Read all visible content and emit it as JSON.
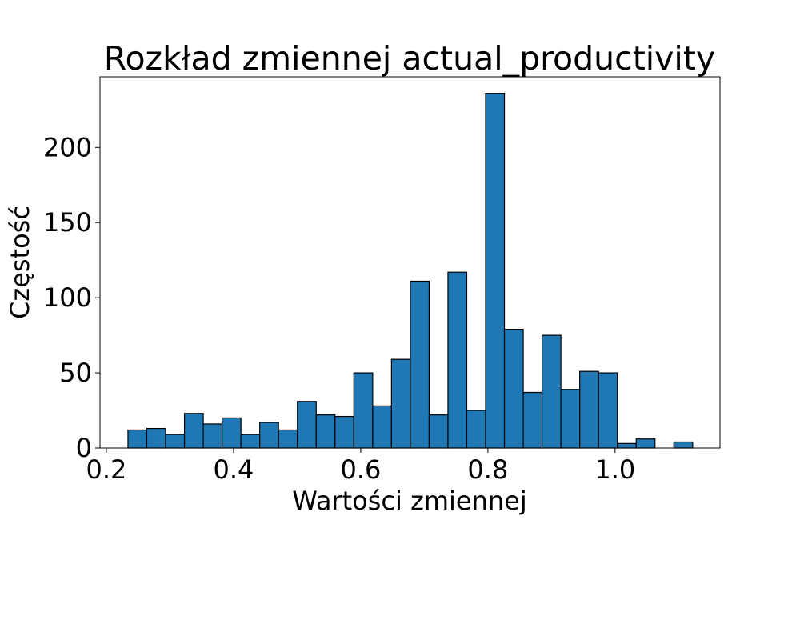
{
  "chart_data": {
    "type": "bar",
    "title": "Rozkład zmiennej actual_productivity",
    "xlabel": "Wartości zmiennej",
    "ylabel": "Częstość",
    "xlim": [
      0.19,
      1.165
    ],
    "ylim": [
      0,
      247
    ],
    "x_ticks": [
      {
        "value": 0.2,
        "label": "0.2"
      },
      {
        "value": 0.4,
        "label": "0.4"
      },
      {
        "value": 0.6,
        "label": "0.6"
      },
      {
        "value": 0.8,
        "label": "0.8"
      },
      {
        "value": 1.0,
        "label": "1.0"
      }
    ],
    "y_ticks": [
      {
        "value": 0,
        "label": "0"
      },
      {
        "value": 50,
        "label": "50"
      },
      {
        "value": 100,
        "label": "100"
      },
      {
        "value": 150,
        "label": "150"
      },
      {
        "value": 200,
        "label": "200"
      }
    ],
    "bin_start": 0.234,
    "bin_width": 0.0296,
    "values": [
      12,
      13,
      9,
      23,
      16,
      20,
      9,
      17,
      12,
      31,
      22,
      21,
      50,
      28,
      59,
      111,
      22,
      117,
      25,
      236,
      79,
      37,
      75,
      39,
      51,
      50,
      3,
      6,
      0,
      4
    ],
    "bar_color": "#1f77b4",
    "edge_color": "#000000",
    "grid": false,
    "legend": "none"
  }
}
